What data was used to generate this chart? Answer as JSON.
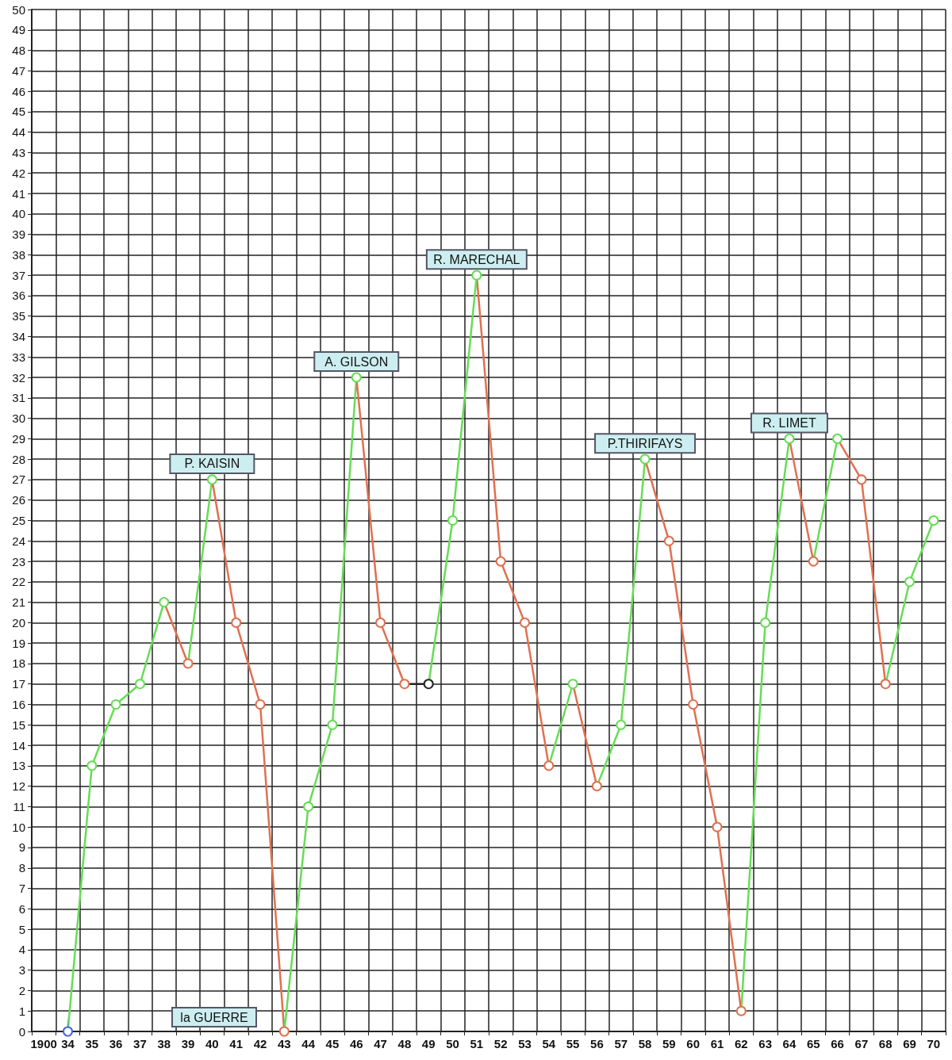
{
  "chart_data": {
    "type": "line",
    "categories": [
      "1900",
      "34",
      "35",
      "36",
      "37",
      "38",
      "39",
      "40",
      "41",
      "42",
      "43",
      "44",
      "45",
      "46",
      "47",
      "48",
      "49",
      "50",
      "51",
      "52",
      "53",
      "54",
      "55",
      "56",
      "57",
      "58",
      "59",
      "60",
      "61",
      "62",
      "63",
      "64",
      "65",
      "66",
      "67",
      "68",
      "69",
      "70"
    ],
    "values": [
      null,
      0,
      13,
      16,
      17,
      21,
      18,
      27,
      20,
      16,
      0,
      11,
      15,
      32,
      20,
      17,
      17,
      25,
      37,
      23,
      20,
      13,
      17,
      12,
      15,
      28,
      24,
      16,
      10,
      1,
      20,
      29,
      23,
      29,
      27,
      17,
      22,
      25
    ],
    "colors": [
      "#4466dd",
      "#4466dd",
      "#66dd55",
      "#66dd55",
      "#66dd55",
      "#66dd55",
      "#e07050",
      "#66dd55",
      "#e07050",
      "#e07050",
      "#e07050",
      "#66dd55",
      "#66dd55",
      "#66dd55",
      "#e07050",
      "#e07050",
      "#222222",
      "#66dd55",
      "#66dd55",
      "#e07050",
      "#e07050",
      "#e07050",
      "#66dd55",
      "#e07050",
      "#66dd55",
      "#66dd55",
      "#e07050",
      "#e07050",
      "#e07050",
      "#e07050",
      "#66dd55",
      "#66dd55",
      "#e07050",
      "#66dd55",
      "#e07050",
      "#e07050",
      "#66dd55",
      "#66dd55"
    ],
    "ylim": [
      0,
      50
    ],
    "yticks": [
      0,
      1,
      2,
      3,
      4,
      5,
      6,
      7,
      8,
      9,
      10,
      11,
      12,
      13,
      14,
      15,
      16,
      17,
      18,
      19,
      20,
      21,
      22,
      23,
      24,
      25,
      26,
      27,
      28,
      29,
      30,
      31,
      32,
      33,
      34,
      35,
      36,
      37,
      38,
      39,
      40,
      41,
      42,
      43,
      44,
      45,
      46,
      47,
      48,
      49,
      50
    ],
    "grid": true,
    "marker": "circle",
    "line_style": "solid",
    "annotations": [
      {
        "text": "P. KAISIN",
        "x": "40",
        "y": 27
      },
      {
        "text": "A. GILSON",
        "x": "46",
        "y": 32
      },
      {
        "text": "R. MARECHAL",
        "x": "51",
        "y": 37
      },
      {
        "text": "P.THIRIFAYS",
        "x": "58",
        "y": 28
      },
      {
        "text": "R. LIMET",
        "x": "64",
        "y": 29
      },
      "la GUERRE"
    ]
  }
}
